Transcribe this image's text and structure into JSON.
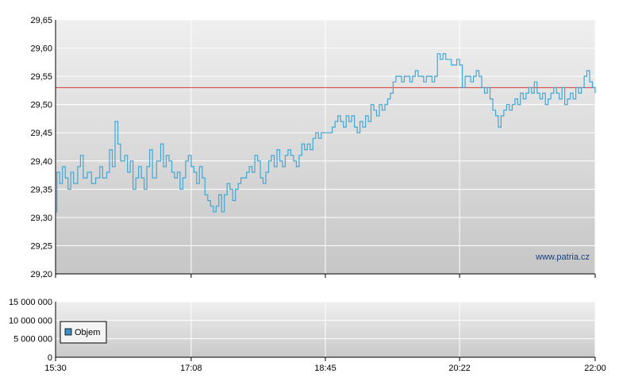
{
  "watermark": "www.patria.cz",
  "legend": {
    "label": "Objem"
  },
  "colors": {
    "price_line": "#3fa7d6",
    "reference_line": "#d23b30",
    "legend_swatch": "#3d8fc7",
    "grid": "#ffffff",
    "axis": "#000000"
  },
  "chart_data": [
    {
      "type": "line",
      "title": "",
      "xlabel": "",
      "ylabel": "",
      "x_ticks": [
        "15:30",
        "17:08",
        "18:45",
        "20:22",
        "22:00"
      ],
      "y_ticks": [
        "29,20",
        "29,25",
        "29,30",
        "29,35",
        "29,40",
        "29,45",
        "29,50",
        "29,55",
        "29,60",
        "29,65"
      ],
      "ylim": [
        29.2,
        29.65
      ],
      "xlim": [
        "15:30",
        "22:00"
      ],
      "reference_line": 29.53,
      "grid": true,
      "series": [
        {
          "values": [
            [
              "15:30",
              29.31
            ],
            [
              "15:31",
              29.38
            ],
            [
              "15:33",
              29.36
            ],
            [
              "15:35",
              29.39
            ],
            [
              "15:37",
              29.37
            ],
            [
              "15:39",
              29.35
            ],
            [
              "15:41",
              29.38
            ],
            [
              "15:43",
              29.36
            ],
            [
              "15:46",
              29.39
            ],
            [
              "15:48",
              29.41
            ],
            [
              "15:50",
              29.37
            ],
            [
              "15:53",
              29.38
            ],
            [
              "15:56",
              29.36
            ],
            [
              "15:59",
              29.37
            ],
            [
              "16:02",
              29.39
            ],
            [
              "16:04",
              29.37
            ],
            [
              "16:07",
              29.38
            ],
            [
              "16:09",
              29.42
            ],
            [
              "16:11",
              29.39
            ],
            [
              "16:13",
              29.47
            ],
            [
              "16:15",
              29.43
            ],
            [
              "16:17",
              29.4
            ],
            [
              "16:20",
              29.41
            ],
            [
              "16:22",
              29.38
            ],
            [
              "16:24",
              29.4
            ],
            [
              "16:26",
              29.35
            ],
            [
              "16:28",
              29.37
            ],
            [
              "16:30",
              29.39
            ],
            [
              "16:32",
              29.37
            ],
            [
              "16:34",
              29.35
            ],
            [
              "16:36",
              29.39
            ],
            [
              "16:38",
              29.42
            ],
            [
              "16:40",
              29.37
            ],
            [
              "16:43",
              29.4
            ],
            [
              "16:46",
              29.43
            ],
            [
              "16:48",
              29.39
            ],
            [
              "16:50",
              29.41
            ],
            [
              "16:52",
              29.4
            ],
            [
              "16:54",
              29.38
            ],
            [
              "16:56",
              29.37
            ],
            [
              "16:58",
              29.38
            ],
            [
              "17:00",
              29.35
            ],
            [
              "17:02",
              29.37
            ],
            [
              "17:04",
              29.4
            ],
            [
              "17:06",
              29.41
            ],
            [
              "17:08",
              29.39
            ],
            [
              "17:10",
              29.38
            ],
            [
              "17:12",
              29.36
            ],
            [
              "17:14",
              29.39
            ],
            [
              "17:16",
              29.37
            ],
            [
              "17:18",
              29.34
            ],
            [
              "17:20",
              29.33
            ],
            [
              "17:22",
              29.32
            ],
            [
              "17:24",
              29.31
            ],
            [
              "17:26",
              29.32
            ],
            [
              "17:28",
              29.34
            ],
            [
              "17:30",
              29.31
            ],
            [
              "17:32",
              29.34
            ],
            [
              "17:34",
              29.36
            ],
            [
              "17:36",
              29.35
            ],
            [
              "17:38",
              29.33
            ],
            [
              "17:40",
              29.35
            ],
            [
              "17:42",
              29.36
            ],
            [
              "17:44",
              29.37
            ],
            [
              "17:46",
              29.37
            ],
            [
              "17:48",
              29.38
            ],
            [
              "17:50",
              29.39
            ],
            [
              "17:52",
              29.38
            ],
            [
              "17:54",
              29.41
            ],
            [
              "17:56",
              29.4
            ],
            [
              "17:58",
              29.37
            ],
            [
              "18:00",
              29.36
            ],
            [
              "18:02",
              29.38
            ],
            [
              "18:04",
              29.4
            ],
            [
              "18:06",
              29.41
            ],
            [
              "18:08",
              29.39
            ],
            [
              "18:10",
              29.42
            ],
            [
              "18:12",
              29.4
            ],
            [
              "18:14",
              29.39
            ],
            [
              "18:16",
              29.41
            ],
            [
              "18:18",
              29.42
            ],
            [
              "18:20",
              29.41
            ],
            [
              "18:22",
              29.4
            ],
            [
              "18:24",
              29.39
            ],
            [
              "18:26",
              29.41
            ],
            [
              "18:28",
              29.43
            ],
            [
              "18:30",
              29.42
            ],
            [
              "18:32",
              29.43
            ],
            [
              "18:34",
              29.42
            ],
            [
              "18:36",
              29.44
            ],
            [
              "18:38",
              29.45
            ],
            [
              "18:40",
              29.44
            ],
            [
              "18:42",
              29.45
            ],
            [
              "18:44",
              29.45
            ],
            [
              "18:46",
              29.45
            ],
            [
              "18:48",
              29.45
            ],
            [
              "18:50",
              29.46
            ],
            [
              "18:52",
              29.47
            ],
            [
              "18:54",
              29.48
            ],
            [
              "18:56",
              29.47
            ],
            [
              "18:58",
              29.46
            ],
            [
              "19:00",
              29.48
            ],
            [
              "19:02",
              29.47
            ],
            [
              "19:04",
              29.48
            ],
            [
              "19:06",
              29.46
            ],
            [
              "19:08",
              29.45
            ],
            [
              "19:10",
              29.47
            ],
            [
              "19:12",
              29.46
            ],
            [
              "19:14",
              29.48
            ],
            [
              "19:16",
              29.47
            ],
            [
              "19:18",
              29.5
            ],
            [
              "19:20",
              29.49
            ],
            [
              "19:22",
              29.48
            ],
            [
              "19:24",
              29.5
            ],
            [
              "19:26",
              29.49
            ],
            [
              "19:28",
              29.5
            ],
            [
              "19:30",
              29.51
            ],
            [
              "19:32",
              29.52
            ],
            [
              "19:34",
              29.54
            ],
            [
              "19:36",
              29.55
            ],
            [
              "19:38",
              29.55
            ],
            [
              "19:40",
              29.54
            ],
            [
              "19:42",
              29.55
            ],
            [
              "19:44",
              29.55
            ],
            [
              "19:46",
              29.54
            ],
            [
              "19:48",
              29.55
            ],
            [
              "19:50",
              29.56
            ],
            [
              "19:52",
              29.55
            ],
            [
              "19:54",
              29.55
            ],
            [
              "19:56",
              29.54
            ],
            [
              "19:58",
              29.55
            ],
            [
              "20:00",
              29.55
            ],
            [
              "20:02",
              29.54
            ],
            [
              "20:04",
              29.55
            ],
            [
              "20:06",
              29.59
            ],
            [
              "20:08",
              29.58
            ],
            [
              "20:10",
              29.59
            ],
            [
              "20:12",
              29.58
            ],
            [
              "20:14",
              29.58
            ],
            [
              "20:16",
              29.57
            ],
            [
              "20:18",
              29.57
            ],
            [
              "20:20",
              29.58
            ],
            [
              "20:22",
              29.57
            ],
            [
              "20:24",
              29.53
            ],
            [
              "20:26",
              29.55
            ],
            [
              "20:28",
              29.55
            ],
            [
              "20:30",
              29.54
            ],
            [
              "20:32",
              29.55
            ],
            [
              "20:34",
              29.56
            ],
            [
              "20:36",
              29.55
            ],
            [
              "20:38",
              29.53
            ],
            [
              "20:40",
              29.52
            ],
            [
              "20:42",
              29.53
            ],
            [
              "20:44",
              29.51
            ],
            [
              "20:46",
              29.49
            ],
            [
              "20:48",
              29.48
            ],
            [
              "20:50",
              29.46
            ],
            [
              "20:52",
              29.48
            ],
            [
              "20:54",
              29.49
            ],
            [
              "20:56",
              29.5
            ],
            [
              "20:58",
              29.49
            ],
            [
              "21:00",
              29.5
            ],
            [
              "21:02",
              29.51
            ],
            [
              "21:04",
              29.5
            ],
            [
              "21:06",
              29.52
            ],
            [
              "21:08",
              29.51
            ],
            [
              "21:10",
              29.52
            ],
            [
              "21:12",
              29.53
            ],
            [
              "21:14",
              29.52
            ],
            [
              "21:16",
              29.54
            ],
            [
              "21:18",
              29.52
            ],
            [
              "21:20",
              29.51
            ],
            [
              "21:22",
              29.52
            ],
            [
              "21:24",
              29.5
            ],
            [
              "21:26",
              29.51
            ],
            [
              "21:28",
              29.52
            ],
            [
              "21:30",
              29.53
            ],
            [
              "21:32",
              29.52
            ],
            [
              "21:34",
              29.51
            ],
            [
              "21:36",
              29.53
            ],
            [
              "21:38",
              29.5
            ],
            [
              "21:40",
              29.51
            ],
            [
              "21:42",
              29.52
            ],
            [
              "21:44",
              29.51
            ],
            [
              "21:46",
              29.53
            ],
            [
              "21:48",
              29.52
            ],
            [
              "21:50",
              29.53
            ],
            [
              "21:52",
              29.55
            ],
            [
              "21:54",
              29.56
            ],
            [
              "21:56",
              29.54
            ],
            [
              "21:58",
              29.53
            ],
            [
              "22:00",
              29.52
            ]
          ]
        }
      ]
    },
    {
      "type": "bar",
      "title": "",
      "xlabel": "",
      "ylabel": "",
      "x_ticks": [
        "15:30",
        "17:08",
        "18:45",
        "20:22",
        "22:00"
      ],
      "y_ticks": [
        "0",
        "5 000 000",
        "10 000 000",
        "15 000 000"
      ],
      "ylim": [
        0,
        15000000
      ],
      "grid": true,
      "legend_position": "bottom-left",
      "series": [
        {
          "name": "Objem",
          "values": []
        }
      ]
    }
  ]
}
